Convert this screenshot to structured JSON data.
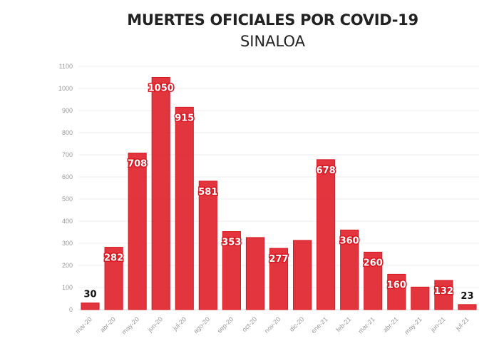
{
  "chart_data": {
    "type": "bar",
    "title": "MUERTES OFICIALES POR COVID-19",
    "subtitle": "SINALOA",
    "xlabel": "",
    "ylabel": "",
    "ylim": [
      0,
      1100
    ],
    "yticks": [
      0,
      100,
      200,
      300,
      400,
      500,
      600,
      700,
      800,
      900,
      1000,
      1100
    ],
    "grid": true,
    "categories": [
      "mar-20",
      "abr-20",
      "may-20",
      "jun-20",
      "jul-20",
      "ago-20",
      "sep-20",
      "oct-20",
      "nov-20",
      "dic-20",
      "ene-21",
      "feb-21",
      "mar-21",
      "abr-21",
      "may-21",
      "jun-21",
      "jul-21"
    ],
    "values": [
      30,
      282,
      708,
      1050,
      915,
      581,
      353,
      326,
      277,
      313,
      678,
      360,
      260,
      160,
      102,
      132,
      23
    ],
    "data_labels": [
      "30",
      "282",
      "708",
      "1050",
      "915",
      "581",
      "353",
      null,
      "277",
      null,
      "678",
      "360",
      "260",
      "160",
      null,
      "132",
      "23"
    ],
    "bar_color": "#e0262f"
  }
}
